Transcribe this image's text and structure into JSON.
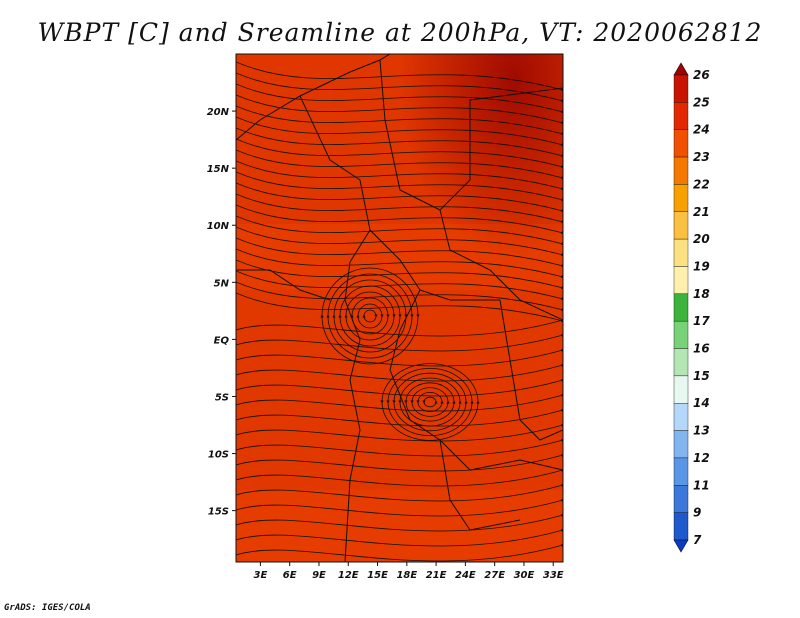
{
  "title": "WBPT [C] and Sreamline at 200hPa, VT: 2020062812",
  "credit": "GrADS: IGES/COLA",
  "map": {
    "lon_labels": [
      "3E",
      "6E",
      "9E",
      "12E",
      "15E",
      "18E",
      "21E",
      "24E",
      "27E",
      "30E",
      "33E"
    ],
    "lat_labels": [
      "20N",
      "15N",
      "10N",
      "5N",
      "EQ",
      "5S",
      "10S",
      "15S"
    ],
    "lon_values": [
      3,
      6,
      9,
      12,
      15,
      18,
      21,
      24,
      27,
      30,
      33
    ],
    "lat_values": [
      20,
      15,
      10,
      5,
      0,
      -5,
      -10,
      -15
    ],
    "lon_range": [
      0.5,
      34
    ],
    "lat_range": [
      -19.5,
      25
    ]
  },
  "colorbar": {
    "labels": [
      "26",
      "25",
      "24",
      "23",
      "22",
      "21",
      "20",
      "19",
      "18",
      "17",
      "16",
      "15",
      "14",
      "13",
      "12",
      "11",
      "9",
      "7"
    ],
    "colors": [
      "#a50000",
      "#c81400",
      "#e12800",
      "#f05000",
      "#f57800",
      "#f8a000",
      "#fac040",
      "#fde080",
      "#fff0b0",
      "#3cb43c",
      "#78d278",
      "#b4e6b4",
      "#e6f8f0",
      "#b4d7fa",
      "#82b4f0",
      "#5a96e6",
      "#3c78dc",
      "#1e5acd",
      "#0a3cc3"
    ]
  }
}
